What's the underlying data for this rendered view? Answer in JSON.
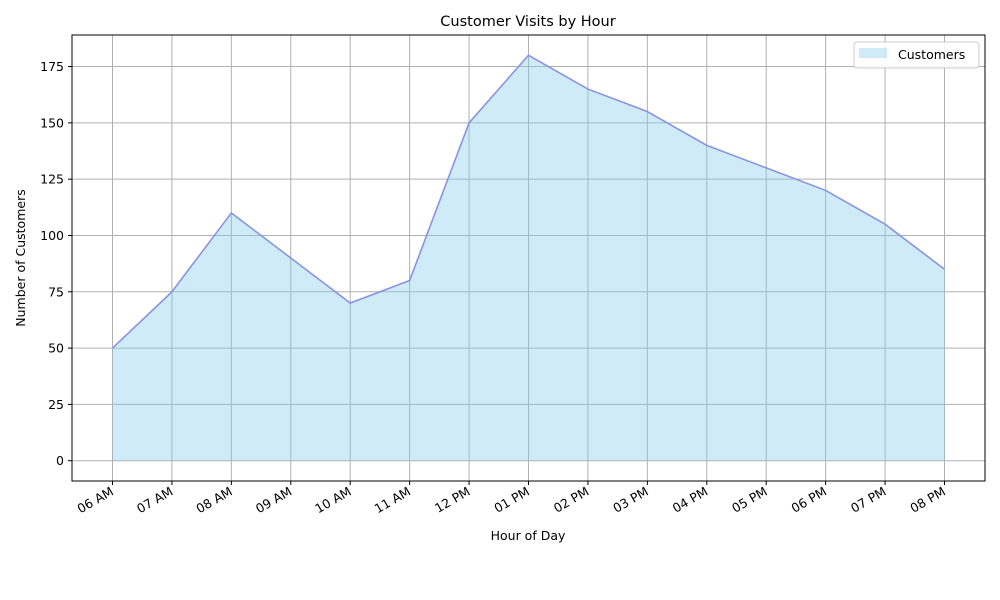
{
  "chart_data": {
    "type": "area",
    "title": "Customer Visits by Hour",
    "xlabel": "Hour of Day",
    "ylabel": "Number of Customers",
    "categories": [
      "06 AM",
      "07 AM",
      "08 AM",
      "09 AM",
      "10 AM",
      "11 AM",
      "12 PM",
      "01 PM",
      "02 PM",
      "03 PM",
      "04 PM",
      "05 PM",
      "06 PM",
      "07 PM",
      "08 PM"
    ],
    "series": [
      {
        "name": "Customers",
        "values": [
          50,
          75,
          110,
          90,
          70,
          80,
          150,
          180,
          165,
          155,
          140,
          130,
          120,
          105,
          85
        ]
      }
    ],
    "yticks": [
      0,
      25,
      50,
      75,
      100,
      125,
      150,
      175
    ],
    "ylim": [
      -9,
      189
    ],
    "grid": true,
    "legend_position": "top-right",
    "colors": {
      "fill": "#87ceeb",
      "line": "#8a93e0",
      "grid": "#b0b0b0",
      "axes": "#000000"
    }
  }
}
